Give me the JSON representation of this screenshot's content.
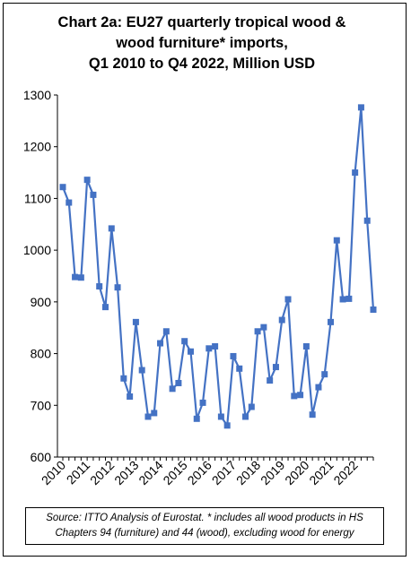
{
  "chart_data": {
    "type": "line",
    "title_lines": [
      "Chart 2a: EU27 quarterly tropical wood &",
      "wood furniture* imports,",
      "Q1 2010 to Q4 2022, Million USD"
    ],
    "xlabel": "",
    "ylabel": "",
    "ylim": [
      600,
      1300
    ],
    "yticks": [
      600,
      700,
      800,
      900,
      1000,
      1100,
      1200,
      1300
    ],
    "x_tick_labels": [
      "2010",
      "2011",
      "2012",
      "2013",
      "2014",
      "2015",
      "2016",
      "2017",
      "2018",
      "2019",
      "2020",
      "2021",
      "2022"
    ],
    "grid": false,
    "legend": "none",
    "series": [
      {
        "color": "#4472C4",
        "values": [
          1122,
          1092,
          948,
          947,
          1136,
          1107,
          930,
          890,
          1042,
          928,
          752,
          717,
          861,
          768,
          678,
          685,
          820,
          843,
          732,
          743,
          824,
          804,
          674,
          705,
          810,
          814,
          678,
          661,
          795,
          771,
          678,
          697,
          843,
          851,
          748,
          774,
          865,
          905,
          718,
          720,
          814,
          682,
          735,
          760,
          861,
          1019,
          905,
          906,
          1150,
          1276,
          1057,
          885
        ]
      }
    ]
  },
  "source_lines": [
    "Source: ITTO Analysis of Eurostat. * includes all wood products in HS",
    "Chapters 94 (furniture) and 44 (wood), excluding wood for energy"
  ]
}
